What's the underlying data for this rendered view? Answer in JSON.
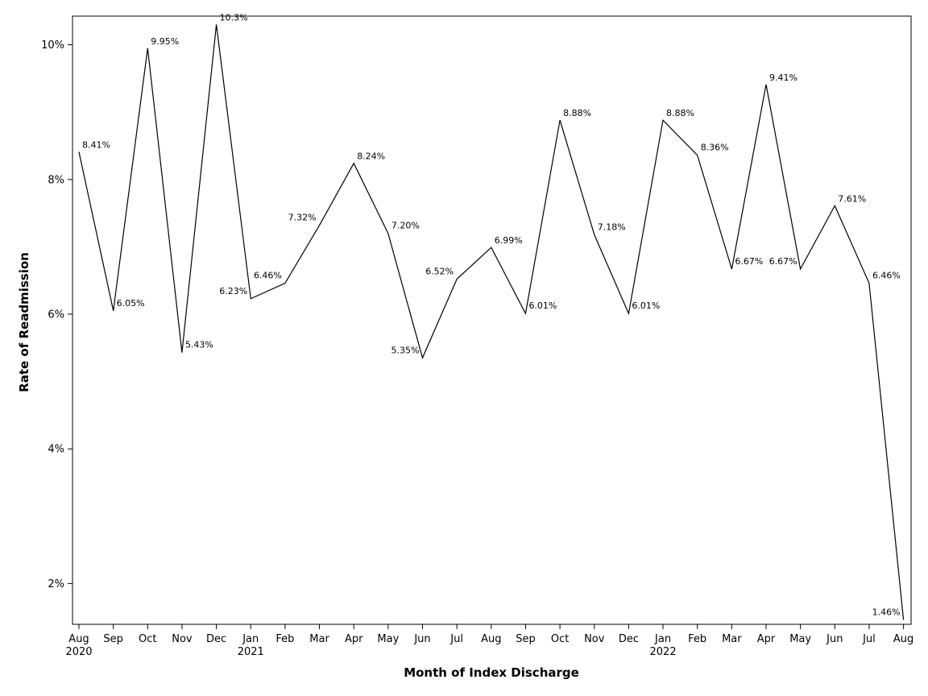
{
  "chart_data": {
    "type": "line",
    "title": "",
    "xlabel": "Month of Index Discharge",
    "ylabel": "Rate of Readmission",
    "ylim": [
      1.4,
      10.4
    ],
    "yticks": [
      {
        "value": 2,
        "label": "2%"
      },
      {
        "value": 4,
        "label": "4%"
      },
      {
        "value": 6,
        "label": "6%"
      },
      {
        "value": 8,
        "label": "8%"
      },
      {
        "value": 10,
        "label": "10%"
      }
    ],
    "categories": [
      "Aug",
      "Sep",
      "Oct",
      "Nov",
      "Dec",
      "Jan",
      "Feb",
      "Mar",
      "Apr",
      "May",
      "Jun",
      "Jul",
      "Aug",
      "Sep",
      "Oct",
      "Nov",
      "Dec",
      "Jan",
      "Feb",
      "Mar",
      "Apr",
      "May",
      "Jun",
      "Jul",
      "Aug"
    ],
    "year_labels": [
      {
        "index": 0,
        "label": "2020"
      },
      {
        "index": 5,
        "label": "2021"
      },
      {
        "index": 17,
        "label": "2022"
      }
    ],
    "series": [
      {
        "name": "Rate of Readmission",
        "values": [
          8.41,
          6.05,
          9.95,
          5.43,
          10.3,
          6.23,
          6.46,
          7.32,
          8.24,
          7.2,
          5.35,
          6.52,
          6.99,
          6.01,
          8.88,
          7.18,
          6.01,
          8.88,
          8.36,
          6.67,
          9.41,
          6.67,
          7.61,
          6.46,
          1.46
        ],
        "labels": [
          "8.41%",
          "6.05%",
          "9.95%",
          "5.43%",
          "10.3%",
          "6.23%",
          "6.46%",
          "7.32%",
          "8.24%",
          "7.20%",
          "5.35%",
          "6.52%",
          "6.99%",
          "6.01%",
          "8.88%",
          "7.18%",
          "6.01%",
          "8.88%",
          "8.36%",
          "6.67%",
          "9.41%",
          "6.67%",
          "7.61%",
          "6.46%",
          "1.46%"
        ],
        "color": "#000000"
      }
    ]
  }
}
